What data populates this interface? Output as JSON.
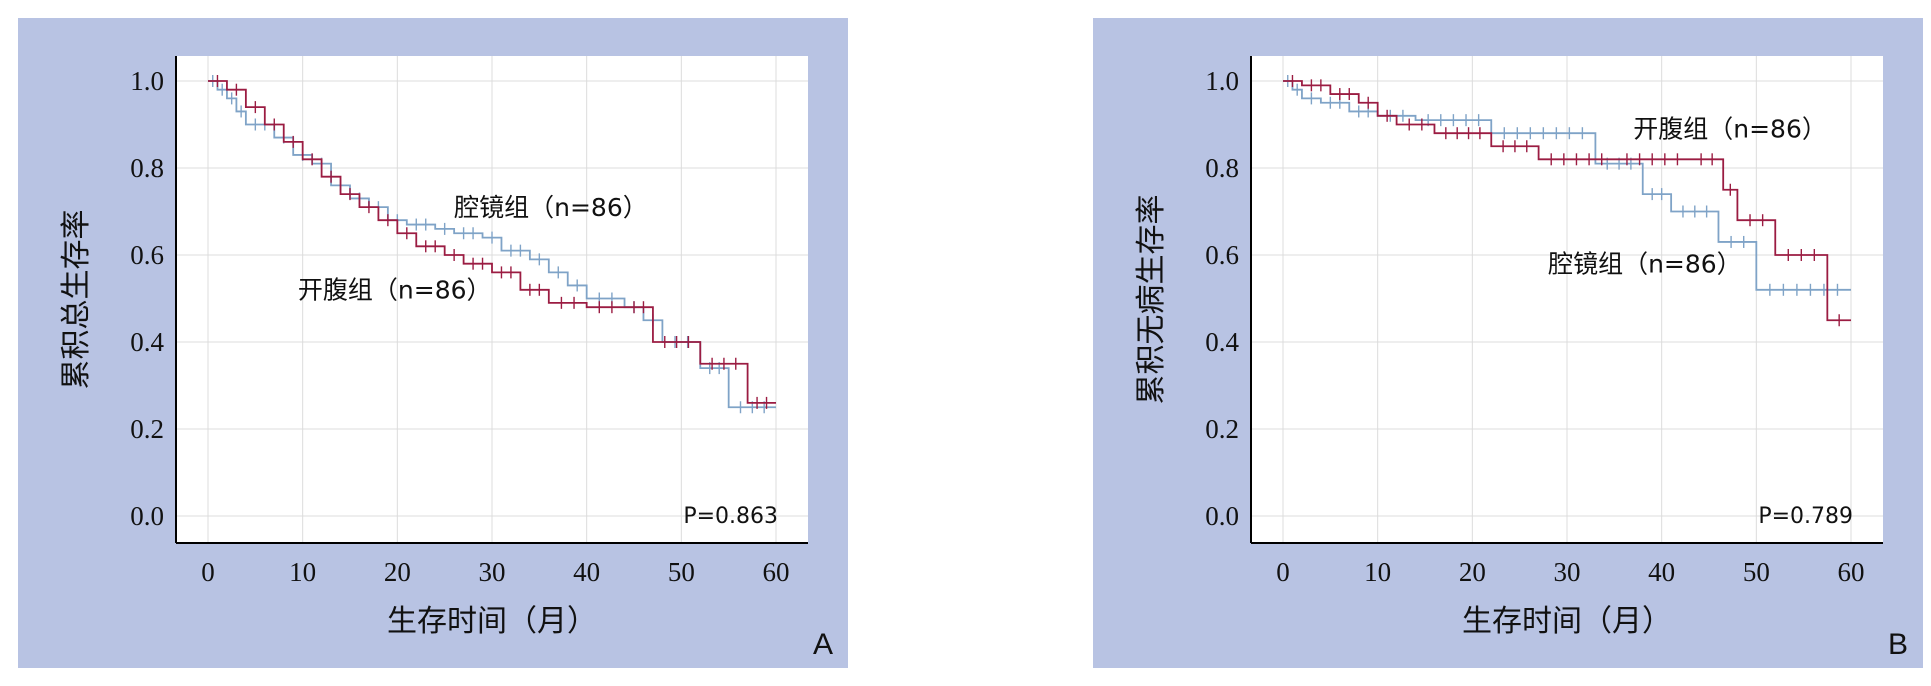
{
  "chart_data": [
    {
      "type": "line",
      "subtype": "kaplan-meier",
      "panel_label": "A",
      "xlabel": "生存时间（月）",
      "ylabel": "累积总生存率",
      "xlim": [
        0,
        60
      ],
      "ylim": [
        0,
        1.0
      ],
      "xticks": [
        "0",
        "10",
        "20",
        "30",
        "40",
        "50",
        "60"
      ],
      "yticks": [
        "0.0",
        "0.2",
        "0.4",
        "0.6",
        "0.8",
        "1.0"
      ],
      "grid": true,
      "p_value": "P=0.863",
      "series": [
        {
          "name": "腔镜组（n=86）",
          "color": "#7fa3c7",
          "x": [
            0,
            1,
            2,
            3,
            4,
            7,
            9,
            11,
            13,
            15,
            17,
            19,
            21,
            24,
            26,
            29,
            31,
            34,
            36,
            38,
            40,
            44,
            46,
            48,
            52,
            55,
            60
          ],
          "y": [
            1.0,
            0.98,
            0.96,
            0.93,
            0.9,
            0.87,
            0.83,
            0.81,
            0.76,
            0.73,
            0.71,
            0.68,
            0.67,
            0.66,
            0.65,
            0.64,
            0.61,
            0.59,
            0.56,
            0.53,
            0.5,
            0.48,
            0.45,
            0.4,
            0.34,
            0.25,
            0.25
          ]
        },
        {
          "name": "开腹组（n=86）",
          "color": "#9b1c42",
          "x": [
            0,
            2,
            4,
            6,
            8,
            10,
            12,
            14,
            16,
            18,
            20,
            22,
            25,
            27,
            30,
            33,
            36,
            40,
            44,
            47,
            52,
            57,
            60
          ],
          "y": [
            1.0,
            0.98,
            0.94,
            0.9,
            0.86,
            0.82,
            0.78,
            0.74,
            0.71,
            0.68,
            0.65,
            0.62,
            0.6,
            0.58,
            0.56,
            0.52,
            0.49,
            0.48,
            0.48,
            0.4,
            0.35,
            0.26,
            0.26
          ]
        }
      ],
      "annotations": [
        {
          "text": "腔镜组（n=86）",
          "x": 26,
          "y": 0.69
        },
        {
          "text": "开腹组（n=86）",
          "x": 9.5,
          "y": 0.5
        }
      ]
    },
    {
      "type": "line",
      "subtype": "kaplan-meier",
      "panel_label": "B",
      "xlabel": "生存时间（月）",
      "ylabel": "累积无病生存率",
      "xlim": [
        0,
        60
      ],
      "ylim": [
        0,
        1.0
      ],
      "xticks": [
        "0",
        "10",
        "20",
        "30",
        "40",
        "50",
        "60"
      ],
      "yticks": [
        "0.0",
        "0.2",
        "0.4",
        "0.6",
        "0.8",
        "1.0"
      ],
      "grid": true,
      "p_value": "P=0.789",
      "series": [
        {
          "name": "腔镜组（n=86）",
          "color": "#7fa3c7",
          "x": [
            0,
            1,
            2,
            4,
            7,
            10,
            14,
            22,
            33,
            38,
            41,
            46,
            50,
            60
          ],
          "y": [
            1.0,
            0.98,
            0.96,
            0.95,
            0.93,
            0.92,
            0.91,
            0.88,
            0.81,
            0.74,
            0.7,
            0.63,
            0.52,
            0.52
          ]
        },
        {
          "name": "开腹组（n=86）",
          "color": "#9b1c42",
          "x": [
            0,
            2,
            5,
            8,
            10,
            12,
            16,
            22,
            27,
            35,
            43,
            46.5,
            48,
            52,
            57.5,
            60
          ],
          "y": [
            1.0,
            0.99,
            0.97,
            0.95,
            0.92,
            0.9,
            0.88,
            0.85,
            0.82,
            0.82,
            0.82,
            0.75,
            0.68,
            0.6,
            0.45,
            0.45
          ]
        }
      ],
      "annotations": [
        {
          "text": "开腹组（n=86）",
          "x": 37,
          "y": 0.87
        },
        {
          "text": "腔镜组（n=86）",
          "x": 28,
          "y": 0.56
        }
      ]
    }
  ]
}
